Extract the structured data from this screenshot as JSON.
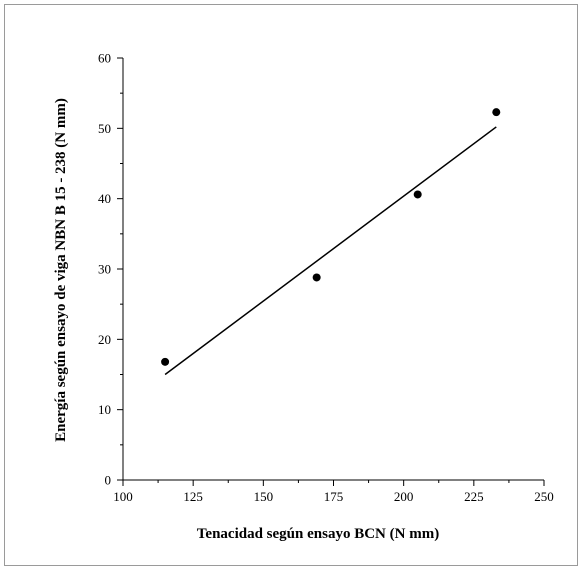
{
  "chart_data": {
    "type": "scatter",
    "title": "",
    "xlabel": "Tenacidad según ensayo BCN (N mm)",
    "ylabel": "Energía según ensayo de viga NBN B 15 - 238 (N mm)",
    "xlim": [
      100,
      250
    ],
    "ylim": [
      0,
      60
    ],
    "x_ticks": [
      "100",
      "125",
      "150",
      "175",
      "200",
      "225",
      "250"
    ],
    "y_ticks": [
      "0",
      "10",
      "20",
      "30",
      "40",
      "50",
      "60"
    ],
    "grid": false,
    "legend": "none",
    "series": [
      {
        "kind": "points",
        "x": [
          115,
          169,
          205,
          233
        ],
        "y": [
          16.8,
          28.8,
          40.6,
          52.3
        ]
      },
      {
        "kind": "fit-line",
        "x": [
          115,
          233
        ],
        "y": [
          15.0,
          50.2
        ]
      }
    ],
    "colors": {
      "points": "#000000",
      "line": "#000000",
      "axes": "#000000"
    }
  }
}
